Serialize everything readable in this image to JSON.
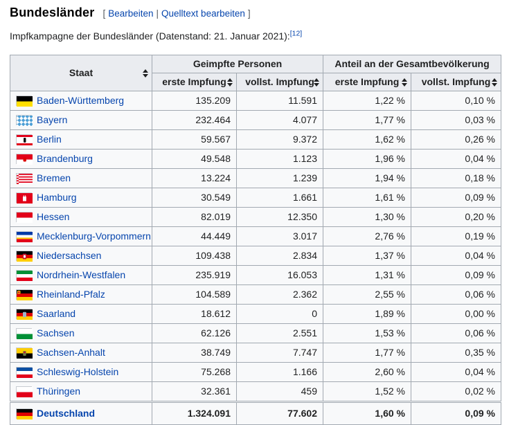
{
  "page": {
    "heading": "Bundesländer",
    "editsection": {
      "bracket_open": "[",
      "edit_label": "Bearbeiten",
      "divider": "|",
      "edit_source_label": "Quelltext bearbeiten",
      "bracket_close": "]"
    },
    "intro": "Impfkampagne der Bundesländer (Datenstand: 21. Januar 2021):",
    "footnote": "[12]"
  },
  "colors": {
    "link": "#0645ad",
    "header_bg": "#eaecf0",
    "table_bg": "#f8f9fa",
    "border": "#a2a9b1"
  },
  "table": {
    "headers": {
      "staat": "Staat",
      "group_vaccinated": "Geimpfte Personen",
      "group_share": "Anteil an der Gesamtbevölkerung",
      "sub": [
        "erste Impfung",
        "vollst. Impfung",
        "erste Impfung",
        "vollst. Impfung"
      ]
    },
    "rows": [
      {
        "state": "Baden-Württemberg",
        "flag": "bw",
        "erste": "135.209",
        "vollst": "11.591",
        "erste_pct": "1,22 %",
        "vollst_pct": "0,10 %"
      },
      {
        "state": "Bayern",
        "flag": "by",
        "erste": "232.464",
        "vollst": "4.077",
        "erste_pct": "1,77 %",
        "vollst_pct": "0,03 %"
      },
      {
        "state": "Berlin",
        "flag": "be",
        "erste": "59.567",
        "vollst": "9.372",
        "erste_pct": "1,62 %",
        "vollst_pct": "0,26 %"
      },
      {
        "state": "Brandenburg",
        "flag": "bb",
        "erste": "49.548",
        "vollst": "1.123",
        "erste_pct": "1,96 %",
        "vollst_pct": "0,04 %"
      },
      {
        "state": "Bremen",
        "flag": "hb",
        "erste": "13.224",
        "vollst": "1.239",
        "erste_pct": "1,94 %",
        "vollst_pct": "0,18 %"
      },
      {
        "state": "Hamburg",
        "flag": "hh",
        "erste": "30.549",
        "vollst": "1.661",
        "erste_pct": "1,61 %",
        "vollst_pct": "0,09 %"
      },
      {
        "state": "Hessen",
        "flag": "he",
        "erste": "82.019",
        "vollst": "12.350",
        "erste_pct": "1,30 %",
        "vollst_pct": "0,20 %"
      },
      {
        "state": "Mecklenburg-Vorpommern",
        "flag": "mv",
        "erste": "44.449",
        "vollst": "3.017",
        "erste_pct": "2,76 %",
        "vollst_pct": "0,19 %"
      },
      {
        "state": "Niedersachsen",
        "flag": "ni",
        "erste": "109.438",
        "vollst": "2.834",
        "erste_pct": "1,37 %",
        "vollst_pct": "0,04 %"
      },
      {
        "state": "Nordrhein-Westfalen",
        "flag": "nw",
        "erste": "235.919",
        "vollst": "16.053",
        "erste_pct": "1,31 %",
        "vollst_pct": "0,09 %"
      },
      {
        "state": "Rheinland-Pfalz",
        "flag": "rp",
        "erste": "104.589",
        "vollst": "2.362",
        "erste_pct": "2,55 %",
        "vollst_pct": "0,06 %"
      },
      {
        "state": "Saarland",
        "flag": "sl",
        "erste": "18.612",
        "vollst": "0",
        "erste_pct": "1,89 %",
        "vollst_pct": "0,00 %"
      },
      {
        "state": "Sachsen",
        "flag": "sn",
        "erste": "62.126",
        "vollst": "2.551",
        "erste_pct": "1,53 %",
        "vollst_pct": "0,06 %"
      },
      {
        "state": "Sachsen-Anhalt",
        "flag": "st",
        "erste": "38.749",
        "vollst": "7.747",
        "erste_pct": "1,77 %",
        "vollst_pct": "0,35 %"
      },
      {
        "state": "Schleswig-Holstein",
        "flag": "sh",
        "erste": "75.268",
        "vollst": "1.166",
        "erste_pct": "2,60 %",
        "vollst_pct": "0,04 %"
      },
      {
        "state": "Thüringen",
        "flag": "th",
        "erste": "32.361",
        "vollst": "459",
        "erste_pct": "1,52 %",
        "vollst_pct": "0,02 %"
      }
    ],
    "total": {
      "state": "Deutschland",
      "flag": "de",
      "erste": "1.324.091",
      "vollst": "77.602",
      "erste_pct": "1,60 %",
      "vollst_pct": "0,09 %"
    }
  }
}
